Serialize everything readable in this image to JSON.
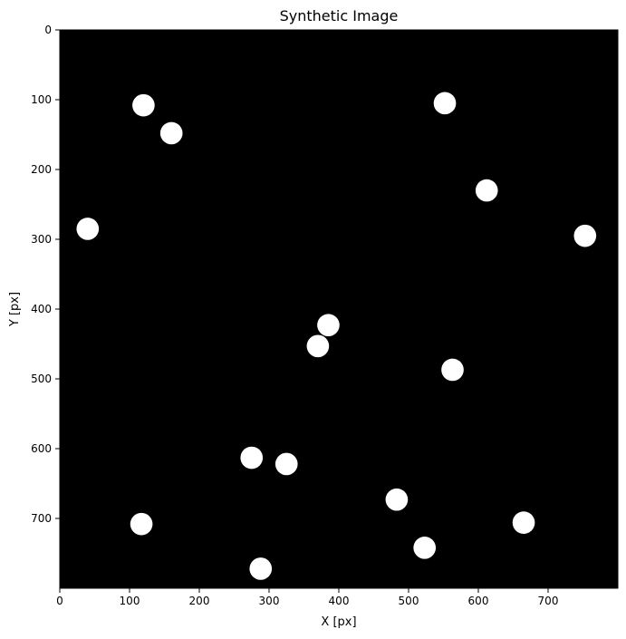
{
  "chart_data": {
    "type": "scatter",
    "title": "Synthetic Image",
    "xlabel": "X [px]",
    "ylabel": "Y [px]",
    "xlim": [
      0,
      800
    ],
    "ylim": [
      800,
      0
    ],
    "y_inverted": true,
    "grid": false,
    "legend": "none",
    "colors": {
      "background": "#000000",
      "marker": "#ffffff"
    },
    "x_ticks": [
      "0",
      "100",
      "200",
      "300",
      "400",
      "500",
      "600",
      "700"
    ],
    "y_ticks": [
      "0",
      "100",
      "200",
      "300",
      "400",
      "500",
      "600",
      "700"
    ],
    "x_tick_values": [
      0,
      100,
      200,
      300,
      400,
      500,
      600,
      700
    ],
    "y_tick_values": [
      0,
      100,
      200,
      300,
      400,
      500,
      600,
      700
    ],
    "marker_radius": 16,
    "points": [
      {
        "x": 120,
        "y": 108
      },
      {
        "x": 160,
        "y": 148
      },
      {
        "x": 552,
        "y": 105
      },
      {
        "x": 612,
        "y": 230
      },
      {
        "x": 40,
        "y": 285
      },
      {
        "x": 753,
        "y": 295
      },
      {
        "x": 385,
        "y": 423
      },
      {
        "x": 370,
        "y": 453
      },
      {
        "x": 563,
        "y": 487
      },
      {
        "x": 275,
        "y": 613
      },
      {
        "x": 325,
        "y": 622
      },
      {
        "x": 483,
        "y": 673
      },
      {
        "x": 117,
        "y": 708
      },
      {
        "x": 665,
        "y": 706
      },
      {
        "x": 523,
        "y": 742
      },
      {
        "x": 288,
        "y": 772
      }
    ]
  }
}
